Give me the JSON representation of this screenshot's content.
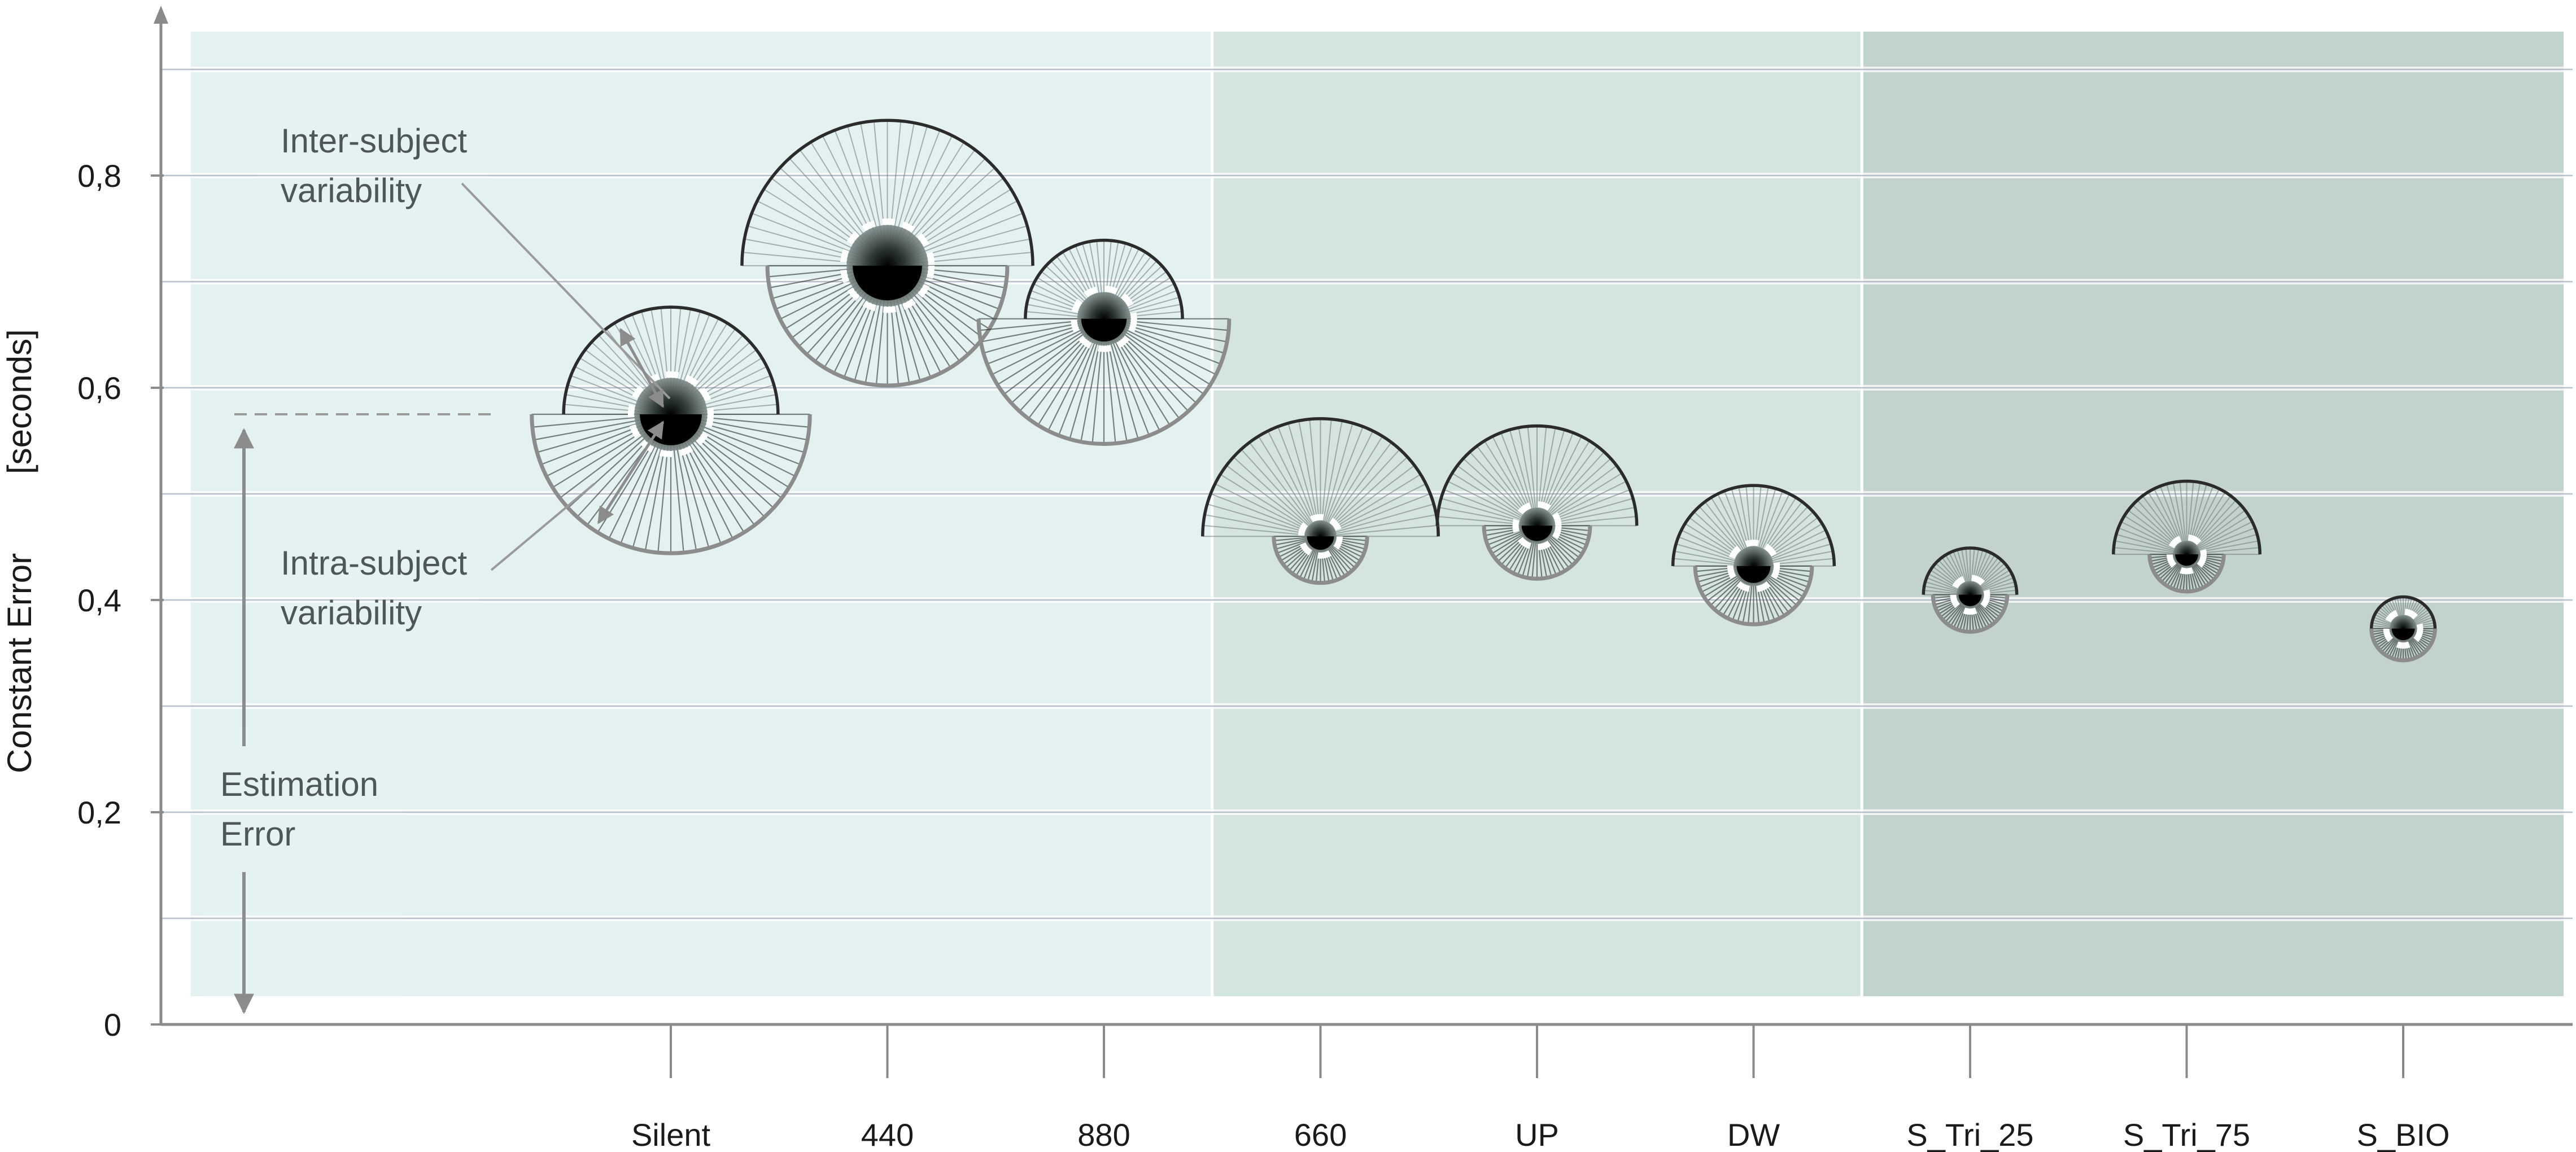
{
  "chart_data": {
    "type": "scatter",
    "title": "",
    "xlabel": "",
    "ylabel": "Constant Error",
    "ylabel_unit": "[seconds]",
    "ylim": [
      0,
      0.93
    ],
    "yticks": [
      0,
      0.2,
      0.4,
      0.6,
      0.8
    ],
    "ytick_labels": [
      "0",
      "0,2",
      "0,4",
      "0,6",
      "0,8"
    ],
    "grid": true,
    "categories": [
      "Silent",
      "440",
      "880",
      "660",
      "UP",
      "DW",
      "S_Tri_25",
      "S_Tri_75",
      "S_BIO"
    ],
    "groups": [
      {
        "first": 0,
        "last": 2,
        "color": "#e3f1f1"
      },
      {
        "first": 3,
        "last": 5,
        "color": "#d4e4df"
      },
      {
        "first": 6,
        "last": 8,
        "color": "#c2d3ce"
      }
    ],
    "points": [
      {
        "category": "Silent",
        "constant_error": 0.575,
        "inter_subject_variability": 0.101,
        "intra_subject_variability": 0.131
      },
      {
        "category": "440",
        "constant_error": 0.715,
        "inter_subject_variability": 0.137,
        "intra_subject_variability": 0.113
      },
      {
        "category": "880",
        "constant_error": 0.665,
        "inter_subject_variability": 0.074,
        "intra_subject_variability": 0.118
      },
      {
        "category": "660",
        "constant_error": 0.46,
        "inter_subject_variability": 0.111,
        "intra_subject_variability": 0.044
      },
      {
        "category": "UP",
        "constant_error": 0.47,
        "inter_subject_variability": 0.094,
        "intra_subject_variability": 0.05
      },
      {
        "category": "DW",
        "constant_error": 0.432,
        "inter_subject_variability": 0.076,
        "intra_subject_variability": 0.055
      },
      {
        "category": "S_Tri_25",
        "constant_error": 0.405,
        "inter_subject_variability": 0.044,
        "intra_subject_variability": 0.035
      },
      {
        "category": "S_Tri_75",
        "constant_error": 0.443,
        "inter_subject_variability": 0.069,
        "intra_subject_variability": 0.035
      },
      {
        "category": "S_BIO",
        "constant_error": 0.373,
        "inter_subject_variability": 0.03,
        "intra_subject_variability": 0.03
      }
    ],
    "annotations": {
      "inter": [
        "Inter-subject",
        "variability"
      ],
      "intra": [
        "Intra-subject",
        "variability"
      ],
      "estimation": [
        "Estimation",
        "Error"
      ]
    },
    "colors": {
      "inter_arc": "#2b2b2b",
      "intra_arc": "#8c8c8c",
      "axis": "#8a8a8a",
      "text": "#1a1a1a",
      "annotation": "#4f5656"
    }
  }
}
